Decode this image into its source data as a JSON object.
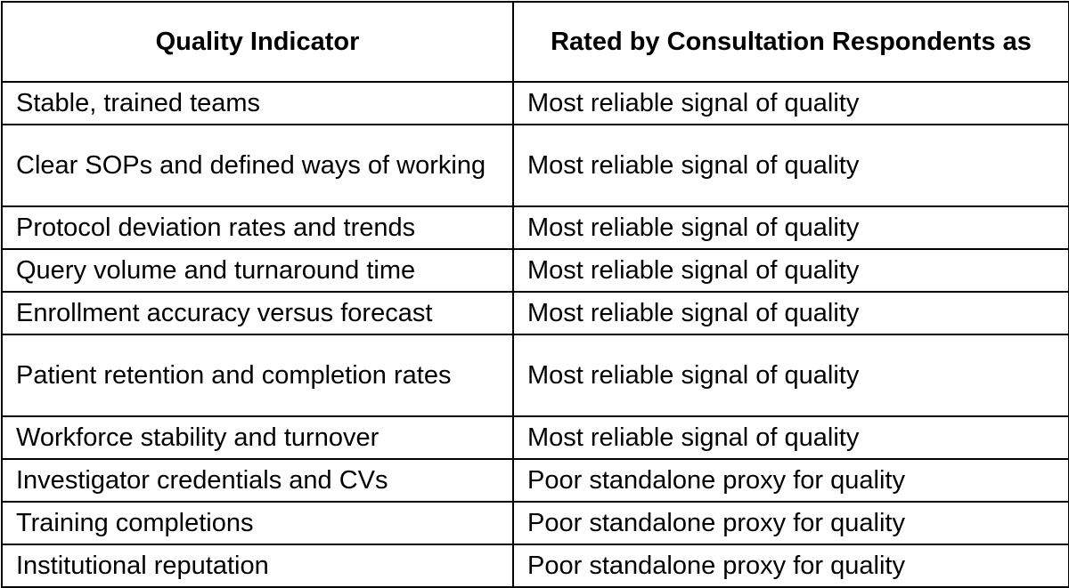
{
  "table": {
    "headers": [
      "Quality Indicator",
      "Rated by Consultation Respondents as"
    ],
    "rows": [
      [
        "Stable, trained teams",
        "Most reliable signal of quality"
      ],
      [
        "Clear SOPs and defined ways of working",
        "Most reliable signal of quality"
      ],
      [
        "Protocol deviation rates and trends",
        "Most reliable signal of quality"
      ],
      [
        "Query volume and turnaround time",
        "Most reliable signal of quality"
      ],
      [
        "Enrollment accuracy versus forecast",
        "Most reliable signal of quality"
      ],
      [
        "Patient retention and completion rates",
        "Most reliable signal of quality"
      ],
      [
        "Workforce stability and turnover",
        "Most reliable signal of quality"
      ],
      [
        "Investigator credentials and CVs",
        "Poor standalone proxy for quality"
      ],
      [
        "Training completions",
        "Poor standalone proxy for quality"
      ],
      [
        "Institutional reputation",
        "Poor standalone proxy for quality"
      ]
    ]
  }
}
